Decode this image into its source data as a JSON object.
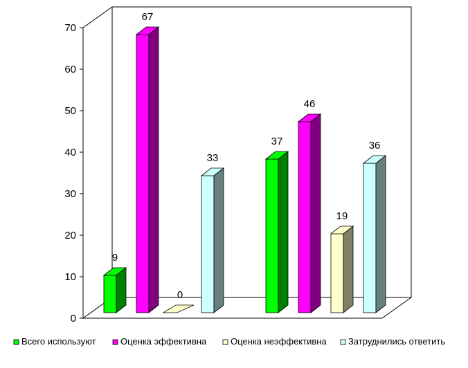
{
  "chart_data": {
    "type": "bar",
    "title": "",
    "xlabel": "",
    "ylabel": "",
    "ylim": [
      0,
      70
    ],
    "y_ticks": [
      0,
      10,
      20,
      30,
      40,
      50,
      60,
      70
    ],
    "grid": false,
    "legend_position": "bottom",
    "style": "3d-columns",
    "groups": 2,
    "series": [
      {
        "name": "Всего используют",
        "values": [
          9,
          37
        ],
        "color": "#00ff00",
        "side_color": "#008000"
      },
      {
        "name": "Оценка эффективна",
        "values": [
          67,
          46
        ],
        "color": "#ff00ff",
        "side_color": "#800080"
      },
      {
        "name": "Оценка неэффективна",
        "values": [
          0,
          19
        ],
        "color": "#ffffcc",
        "side_color": "#808066"
      },
      {
        "name": "Затруднились ответить",
        "values": [
          33,
          36
        ],
        "color": "#ccffff",
        "side_color": "#678080"
      }
    ]
  }
}
